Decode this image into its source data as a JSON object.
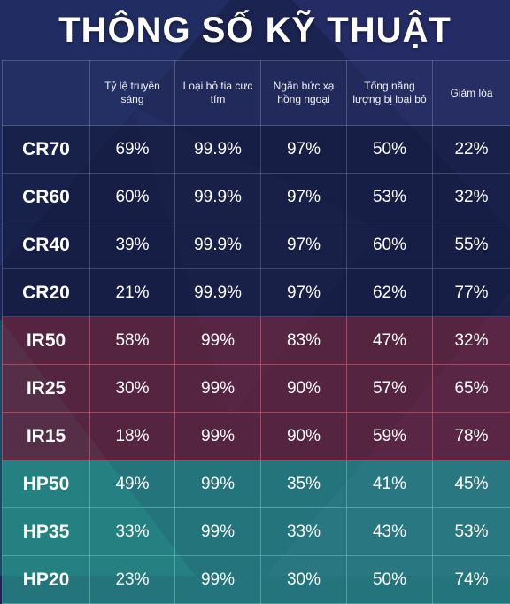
{
  "title": "THÔNG SỐ KỸ THUẬT",
  "headers": [
    "Tỷ lệ truyền sáng",
    "Loại bỏ tia cực tím",
    "Ngăn bức xạ hồng ngoại",
    "Tổng năng lượng bị loại bỏ",
    "Giảm lóa"
  ],
  "rows": [
    {
      "name": "CR70",
      "values": [
        "69%",
        "99.9%",
        "97%",
        "50%",
        "22%"
      ]
    },
    {
      "name": "CR60",
      "values": [
        "60%",
        "99.9%",
        "97%",
        "53%",
        "32%"
      ]
    },
    {
      "name": "CR40",
      "values": [
        "39%",
        "99.9%",
        "97%",
        "60%",
        "55%"
      ]
    },
    {
      "name": "CR20",
      "values": [
        "21%",
        "99.9%",
        "97%",
        "62%",
        "77%"
      ]
    },
    {
      "name": "IR50",
      "values": [
        "58%",
        "99%",
        "83%",
        "47%",
        "32%"
      ]
    },
    {
      "name": "IR25",
      "values": [
        "30%",
        "99%",
        "90%",
        "57%",
        "65%"
      ]
    },
    {
      "name": "IR15",
      "values": [
        "18%",
        "99%",
        "90%",
        "59%",
        "78%"
      ]
    },
    {
      "name": "HP50",
      "values": [
        "49%",
        "99%",
        "35%",
        "41%",
        "45%"
      ]
    },
    {
      "name": "HP35",
      "values": [
        "33%",
        "99%",
        "33%",
        "43%",
        "53%"
      ]
    },
    {
      "name": "HP20",
      "values": [
        "23%",
        "99%",
        "30%",
        "50%",
        "74%"
      ]
    }
  ],
  "colors": {
    "background": "#1b2350",
    "cr_group": "#161e42",
    "ir_group": "#6c263c",
    "hp_group": "#28968c"
  }
}
